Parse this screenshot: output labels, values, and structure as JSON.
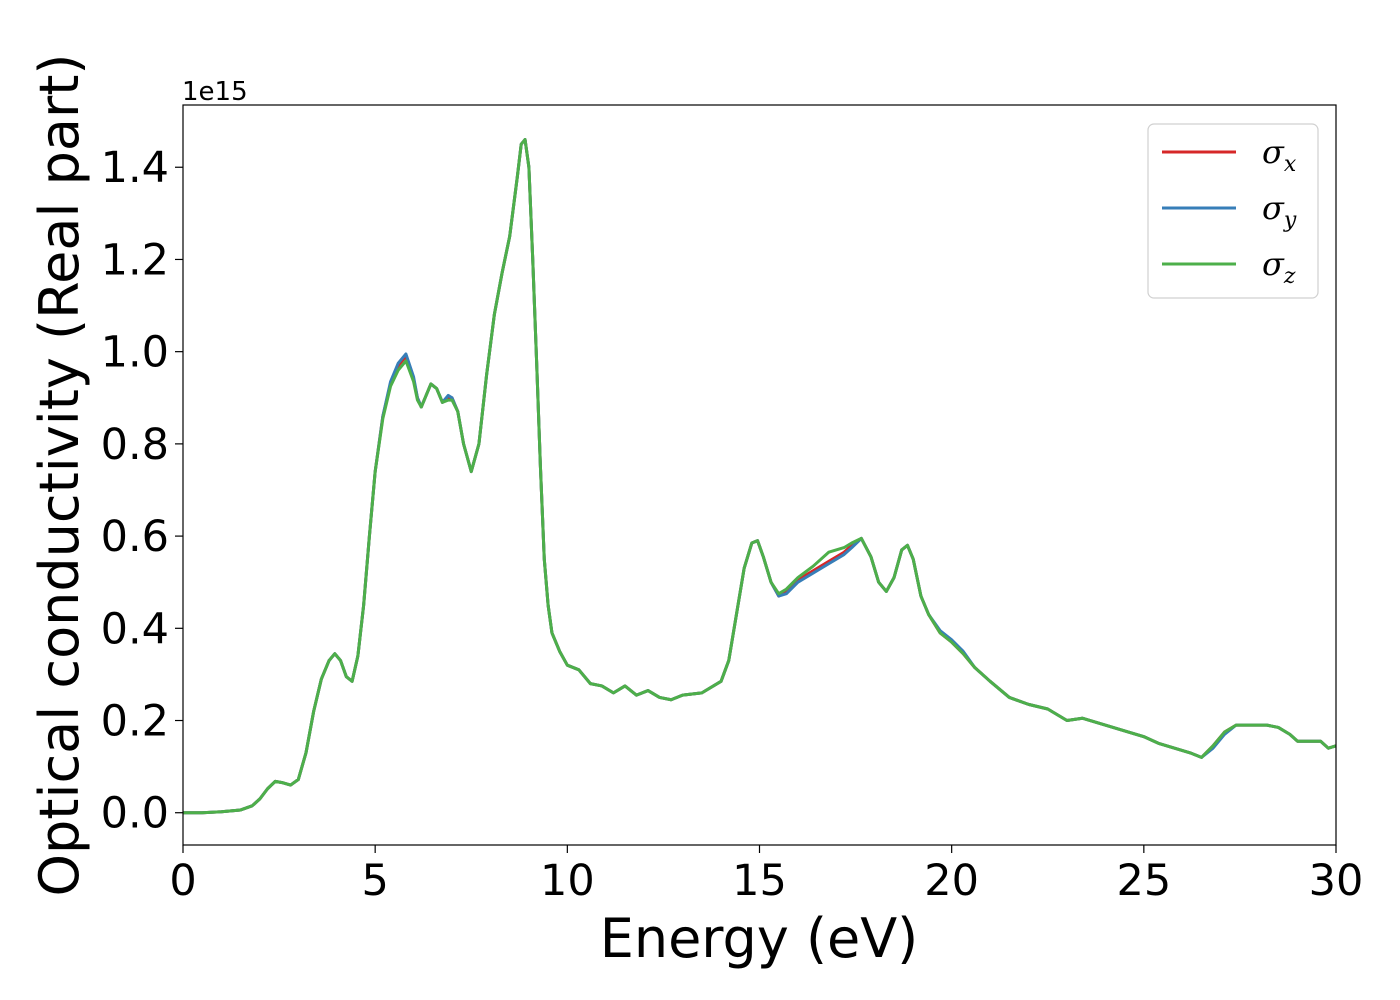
{
  "chart_data": {
    "type": "line",
    "title": "",
    "xlabel": "Energy (eV)",
    "ylabel": "Optical conductivity (Real part)",
    "y_offset_label": "1e15",
    "xlim": [
      0,
      30
    ],
    "ylim": [
      -0.07,
      1.535
    ],
    "xticks": [
      0,
      5,
      10,
      15,
      20,
      25,
      30
    ],
    "xtick_labels": [
      "0",
      "5",
      "10",
      "15",
      "20",
      "25",
      "30"
    ],
    "yticks": [
      0.0,
      0.2,
      0.4,
      0.6,
      0.8,
      1.0,
      1.2,
      1.4
    ],
    "ytick_labels": [
      "0.0",
      "0.2",
      "0.4",
      "0.6",
      "0.8",
      "1.0",
      "1.2",
      "1.4"
    ],
    "grid": false,
    "legend_position": "top-right",
    "x": [
      0,
      0.5,
      1.0,
      1.5,
      1.8,
      2.0,
      2.2,
      2.4,
      2.6,
      2.8,
      3.0,
      3.2,
      3.4,
      3.6,
      3.8,
      3.95,
      4.1,
      4.25,
      4.4,
      4.55,
      4.7,
      4.85,
      5.0,
      5.2,
      5.4,
      5.6,
      5.8,
      6.0,
      6.1,
      6.2,
      6.3,
      6.45,
      6.6,
      6.75,
      6.9,
      7.0,
      7.15,
      7.3,
      7.5,
      7.7,
      7.9,
      8.1,
      8.3,
      8.5,
      8.7,
      8.8,
      8.9,
      9.0,
      9.1,
      9.2,
      9.3,
      9.4,
      9.5,
      9.6,
      9.8,
      10.0,
      10.3,
      10.6,
      10.9,
      11.2,
      11.5,
      11.8,
      12.1,
      12.4,
      12.7,
      13.0,
      13.5,
      14.0,
      14.2,
      14.4,
      14.6,
      14.8,
      14.95,
      15.1,
      15.3,
      15.5,
      15.7,
      16.0,
      16.4,
      16.8,
      17.2,
      17.4,
      17.65,
      17.9,
      18.1,
      18.3,
      18.5,
      18.7,
      18.85,
      19.0,
      19.2,
      19.4,
      19.7,
      20.0,
      20.3,
      20.6,
      21.0,
      21.5,
      22.0,
      22.5,
      23.0,
      23.4,
      23.8,
      24.2,
      24.6,
      25.0,
      25.4,
      25.8,
      26.2,
      26.5,
      26.8,
      27.1,
      27.4,
      27.8,
      28.2,
      28.5,
      28.8,
      29.0,
      29.3,
      29.6,
      29.8,
      30.0
    ],
    "series": [
      {
        "name": "σx",
        "color": "#d62728",
        "values": [
          0.0,
          0.0,
          0.002,
          0.006,
          0.015,
          0.03,
          0.052,
          0.068,
          0.065,
          0.06,
          0.072,
          0.13,
          0.22,
          0.29,
          0.33,
          0.345,
          0.33,
          0.295,
          0.285,
          0.34,
          0.45,
          0.6,
          0.74,
          0.86,
          0.93,
          0.97,
          0.99,
          0.94,
          0.9,
          0.88,
          0.9,
          0.93,
          0.92,
          0.89,
          0.9,
          0.9,
          0.87,
          0.8,
          0.74,
          0.8,
          0.95,
          1.08,
          1.17,
          1.25,
          1.38,
          1.45,
          1.46,
          1.4,
          1.2,
          0.98,
          0.75,
          0.55,
          0.45,
          0.39,
          0.35,
          0.32,
          0.31,
          0.28,
          0.275,
          0.26,
          0.275,
          0.255,
          0.265,
          0.25,
          0.245,
          0.255,
          0.26,
          0.285,
          0.33,
          0.43,
          0.53,
          0.585,
          0.59,
          0.555,
          0.5,
          0.47,
          0.48,
          0.505,
          0.525,
          0.545,
          0.565,
          0.58,
          0.595,
          0.555,
          0.5,
          0.48,
          0.51,
          0.57,
          0.58,
          0.55,
          0.47,
          0.43,
          0.39,
          0.37,
          0.345,
          0.315,
          0.285,
          0.25,
          0.235,
          0.225,
          0.2,
          0.205,
          0.195,
          0.185,
          0.175,
          0.165,
          0.15,
          0.14,
          0.13,
          0.12,
          0.145,
          0.175,
          0.19,
          0.19,
          0.19,
          0.185,
          0.17,
          0.155,
          0.155,
          0.155,
          0.14,
          0.145
        ]
      },
      {
        "name": "σy",
        "color": "#377eb8",
        "values": [
          0.0,
          0.0,
          0.002,
          0.006,
          0.015,
          0.03,
          0.052,
          0.068,
          0.065,
          0.06,
          0.072,
          0.13,
          0.22,
          0.29,
          0.33,
          0.345,
          0.33,
          0.295,
          0.285,
          0.34,
          0.45,
          0.6,
          0.74,
          0.86,
          0.935,
          0.975,
          0.995,
          0.945,
          0.9,
          0.88,
          0.9,
          0.93,
          0.92,
          0.89,
          0.905,
          0.9,
          0.87,
          0.8,
          0.74,
          0.8,
          0.95,
          1.08,
          1.17,
          1.25,
          1.38,
          1.45,
          1.46,
          1.4,
          1.2,
          0.98,
          0.75,
          0.55,
          0.45,
          0.39,
          0.35,
          0.32,
          0.31,
          0.28,
          0.275,
          0.26,
          0.275,
          0.255,
          0.265,
          0.25,
          0.245,
          0.255,
          0.26,
          0.285,
          0.33,
          0.43,
          0.53,
          0.585,
          0.59,
          0.555,
          0.5,
          0.47,
          0.475,
          0.5,
          0.52,
          0.54,
          0.56,
          0.575,
          0.595,
          0.555,
          0.5,
          0.48,
          0.51,
          0.57,
          0.58,
          0.55,
          0.47,
          0.43,
          0.395,
          0.375,
          0.35,
          0.315,
          0.285,
          0.25,
          0.235,
          0.225,
          0.2,
          0.205,
          0.195,
          0.185,
          0.175,
          0.165,
          0.15,
          0.14,
          0.13,
          0.12,
          0.14,
          0.17,
          0.19,
          0.19,
          0.19,
          0.185,
          0.17,
          0.155,
          0.155,
          0.155,
          0.14,
          0.145
        ]
      },
      {
        "name": "σz",
        "color": "#4daf4a",
        "values": [
          0.0,
          0.0,
          0.002,
          0.006,
          0.015,
          0.03,
          0.052,
          0.068,
          0.065,
          0.06,
          0.072,
          0.13,
          0.22,
          0.29,
          0.33,
          0.345,
          0.33,
          0.295,
          0.285,
          0.34,
          0.45,
          0.6,
          0.74,
          0.855,
          0.925,
          0.96,
          0.98,
          0.935,
          0.895,
          0.88,
          0.9,
          0.93,
          0.92,
          0.89,
          0.895,
          0.895,
          0.87,
          0.8,
          0.74,
          0.8,
          0.95,
          1.08,
          1.17,
          1.25,
          1.38,
          1.45,
          1.46,
          1.4,
          1.2,
          0.98,
          0.75,
          0.55,
          0.45,
          0.39,
          0.35,
          0.32,
          0.31,
          0.28,
          0.275,
          0.26,
          0.275,
          0.255,
          0.265,
          0.25,
          0.245,
          0.255,
          0.26,
          0.285,
          0.33,
          0.43,
          0.53,
          0.585,
          0.59,
          0.555,
          0.5,
          0.475,
          0.485,
          0.51,
          0.535,
          0.565,
          0.575,
          0.585,
          0.595,
          0.555,
          0.5,
          0.48,
          0.51,
          0.57,
          0.58,
          0.55,
          0.47,
          0.43,
          0.39,
          0.37,
          0.345,
          0.315,
          0.285,
          0.25,
          0.235,
          0.225,
          0.2,
          0.205,
          0.195,
          0.185,
          0.175,
          0.165,
          0.15,
          0.14,
          0.13,
          0.12,
          0.145,
          0.175,
          0.19,
          0.19,
          0.19,
          0.185,
          0.17,
          0.155,
          0.155,
          0.155,
          0.14,
          0.145
        ]
      }
    ],
    "legend": [
      {
        "symbol": "σ",
        "sub": "x"
      },
      {
        "symbol": "σ",
        "sub": "y"
      },
      {
        "symbol": "σ",
        "sub": "z"
      }
    ]
  }
}
